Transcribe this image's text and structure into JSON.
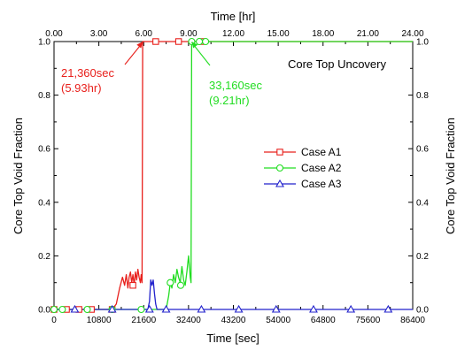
{
  "chart_data": {
    "type": "line",
    "title": "Core Top Uncovery",
    "xlabel": "Time [sec]",
    "ylabel": "Core Top Void Fraction",
    "x2label": "Time [hr]",
    "xlim": [
      0,
      86400
    ],
    "ylim": [
      0,
      1.0
    ],
    "x2lim": [
      0,
      24
    ],
    "xticks": [
      0,
      10800,
      21600,
      32400,
      43200,
      54000,
      64800,
      75600,
      86400
    ],
    "x2ticks": [
      "0.00",
      "3.00",
      "6.00",
      "9.00",
      "12.00",
      "15.00",
      "18.00",
      "21.00",
      "24.00"
    ],
    "yticks": [
      "0.0",
      "0.2",
      "0.4",
      "0.6",
      "0.8",
      "1.0"
    ],
    "grid": false,
    "legend": "center-right",
    "series": [
      {
        "name": "Case A1",
        "color": "#e8201c",
        "marker": "square",
        "x": [
          0,
          14000,
          15000,
          15800,
          16500,
          17000,
          17400,
          17800,
          18100,
          18400,
          18700,
          19000,
          19300,
          19600,
          19900,
          20200,
          20500,
          20800,
          21000,
          21200,
          21360,
          21600,
          86400
        ],
        "y": [
          0.0,
          0.0,
          0.02,
          0.08,
          0.12,
          0.09,
          0.13,
          0.08,
          0.12,
          0.14,
          0.1,
          0.13,
          0.09,
          0.14,
          0.11,
          0.15,
          0.12,
          0.1,
          0.13,
          0.1,
          1.0,
          1.0,
          1.0
        ],
        "markers_x": [
          0,
          3000,
          6000,
          9000,
          14000,
          19000,
          24500,
          30000,
          35500
        ],
        "markers_y": [
          0.0,
          0.0,
          0.0,
          0.0,
          0.0,
          0.09,
          1.0,
          1.0,
          1.0
        ]
      },
      {
        "name": "Case A2",
        "color": "#22dd22",
        "marker": "circle",
        "x": [
          0,
          27000,
          27600,
          28000,
          28400,
          28800,
          29200,
          29600,
          30000,
          30400,
          30800,
          31200,
          31600,
          32000,
          32400,
          32800,
          33000,
          33160,
          34000,
          86400
        ],
        "y": [
          0.0,
          0.0,
          0.05,
          0.1,
          0.08,
          0.13,
          0.1,
          0.15,
          0.12,
          0.1,
          0.16,
          0.11,
          0.09,
          0.14,
          0.2,
          0.12,
          0.1,
          1.0,
          1.0,
          1.0
        ],
        "markers_x": [
          0,
          2000,
          8000,
          14000,
          21000,
          28000,
          30500,
          33160,
          35000,
          36500
        ],
        "markers_y": [
          0.0,
          0.0,
          0.0,
          0.0,
          0.0,
          0.1,
          0.09,
          1.0,
          1.0,
          1.0
        ]
      },
      {
        "name": "Case A3",
        "color": "#2222cc",
        "marker": "triangle",
        "x": [
          0,
          22600,
          23000,
          23300,
          23600,
          23900,
          24200,
          24500,
          24800,
          86400
        ],
        "y": [
          0.0,
          0.0,
          0.03,
          0.11,
          0.09,
          0.11,
          0.06,
          0.02,
          0.0,
          0.0
        ],
        "markers_x": [
          5000,
          14000,
          23000,
          27000,
          35500,
          44500,
          53500,
          62500,
          71500,
          80500
        ],
        "markers_y": [
          0.0,
          0.0,
          0.0,
          0.0,
          0.0,
          0.0,
          0.0,
          0.0,
          0.0,
          0.0
        ]
      }
    ],
    "annotations": [
      {
        "lines": [
          "21,360sec",
          "(5.93hr)"
        ],
        "color": "#e8201c",
        "target": [
          21360,
          1.0
        ]
      },
      {
        "lines": [
          "33,160sec",
          "(9.21hr)"
        ],
        "color": "#22dd22",
        "target": [
          33160,
          1.0
        ]
      }
    ]
  }
}
